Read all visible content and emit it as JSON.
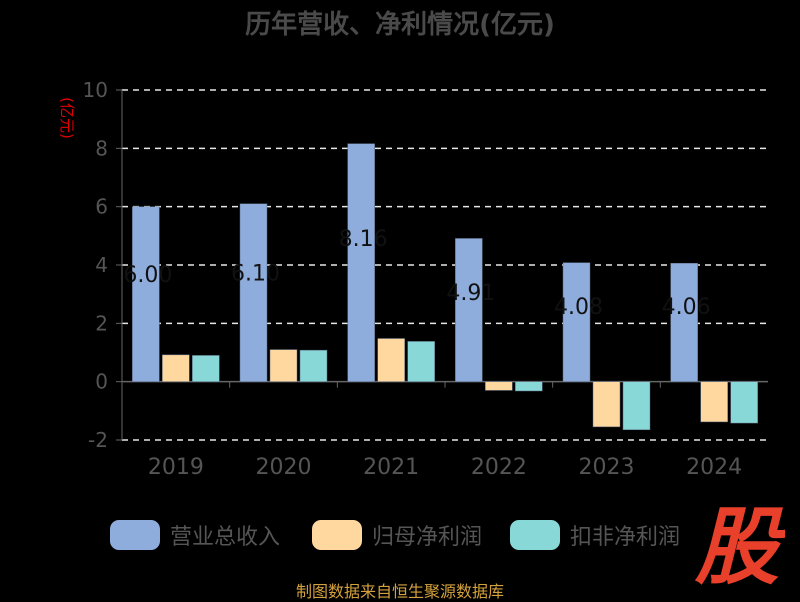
{
  "chart_data": {
    "type": "bar",
    "title": "历年营收、净利情况(亿元)",
    "ylabel": "(亿元)",
    "ylim": [
      -2,
      10
    ],
    "yticks": [
      -2,
      0,
      2,
      4,
      6,
      8,
      10
    ],
    "grid": true,
    "categories": [
      "2019",
      "2020",
      "2021",
      "2022",
      "2023",
      "2024"
    ],
    "series": [
      {
        "name": "营业总收入",
        "color": "#8eacdc",
        "values": [
          6.0,
          6.1,
          8.16,
          4.91,
          4.08,
          4.06
        ]
      },
      {
        "name": "归母净利润",
        "color": "#ffd8a0",
        "values": [
          0.92,
          1.1,
          1.48,
          -0.3,
          -1.55,
          -1.38
        ]
      },
      {
        "name": "扣非净利润",
        "color": "#88d8d8",
        "values": [
          0.9,
          1.08,
          1.38,
          -0.32,
          -1.65,
          -1.42
        ]
      }
    ],
    "data_labels": [
      "6.00",
      "6.10",
      "8.16",
      "4.91",
      "4.08",
      "4.06"
    ],
    "legend_position": "bottom"
  },
  "footer": {
    "source": "制图数据来自恒生聚源数据库"
  },
  "logo": {
    "text": "股",
    "color": "#e8402a"
  }
}
